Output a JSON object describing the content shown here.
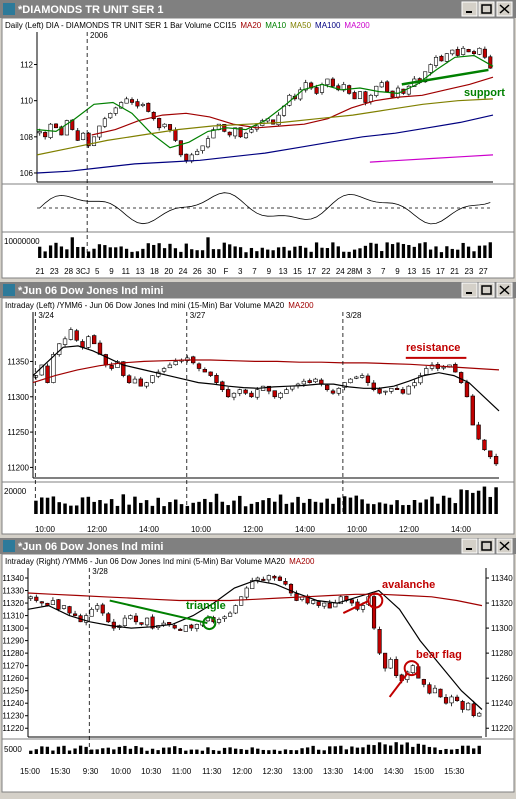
{
  "colors": {
    "titlebar": "#808080",
    "bull": "#ffffff",
    "bear": "#c00000",
    "ma20": "#a00000",
    "ma10": "#008000",
    "ma50": "#808000",
    "ma100": "#000080",
    "ma200": "#cc00cc",
    "annot_green": "#008000",
    "annot_red": "#c00000"
  },
  "windows": [
    {
      "title": "*DIAMONDS TR UNIT SER 1",
      "header": {
        "prefix": "Daily  (Left)   DIA - DIAMONDS TR UNIT SER 1  Bar  Volume  CCI15",
        "ma_labels": [
          {
            "text": "MA20",
            "color": "#a00000"
          },
          {
            "text": "MA10",
            "color": "#008000"
          },
          {
            "text": "MA50",
            "color": "#808000"
          },
          {
            "text": "MA100",
            "color": "#000080"
          },
          {
            "text": "MA200",
            "color": "#cc00cc"
          }
        ]
      }
    },
    {
      "title": "*Jun 06  Dow Jones Ind mini",
      "header": {
        "prefix": "Intraday  (Left)  /YMM6 - Jun 06  Dow Jones Ind mini  (15-Min)  Bar  Volume  MA20",
        "ma_labels": [
          {
            "text": "MA200",
            "color": "#a00000"
          }
        ]
      }
    },
    {
      "title": "*Jun 06  Dow Jones Ind mini",
      "header": {
        "prefix": "Intraday  (Right)  /YMM6 - Jun 06  Dow Jones Ind mini  (5-Min)  Bar  Volume  MA20",
        "ma_labels": [
          {
            "text": "MA200",
            "color": "#a00000"
          }
        ]
      }
    }
  ],
  "chart_data": [
    {
      "type": "candlestick",
      "timeframe": "Daily",
      "symbol": "DIA",
      "ylim": [
        105.5,
        113.8
      ],
      "y_ticks": [
        "112",
        "110",
        "108",
        "106"
      ],
      "year_marker": "2006",
      "x_tick_labels": [
        "21",
        "23",
        "28",
        "3CJ",
        "5",
        "9",
        "11",
        "13",
        "18",
        "20",
        "24",
        "26",
        "30",
        "F",
        "3",
        "7",
        "9",
        "13",
        "15",
        "17",
        "22",
        "24",
        "28M",
        "3",
        "7",
        "9",
        "13",
        "15",
        "17",
        "21",
        "23",
        "27"
      ],
      "closes": [
        108.3,
        108.0,
        108.7,
        108.5,
        108.1,
        108.9,
        108.4,
        107.8,
        108.2,
        107.5,
        108.0,
        108.6,
        109.0,
        109.3,
        109.6,
        109.9,
        110.1,
        109.9,
        109.7,
        109.8,
        109.4,
        109.0,
        108.5,
        108.7,
        108.4,
        107.8,
        107.0,
        106.7,
        107.0,
        107.2,
        107.5,
        107.9,
        108.4,
        108.7,
        108.3,
        108.1,
        108.5,
        108.0,
        108.2,
        108.4,
        108.6,
        108.9,
        109.0,
        108.7,
        109.2,
        109.7,
        110.3,
        110.1,
        110.6,
        111.0,
        110.7,
        110.4,
        110.9,
        111.2,
        110.8,
        110.6,
        110.9,
        110.4,
        110.1,
        110.5,
        109.9,
        110.3,
        110.8,
        111.0,
        110.5,
        110.2,
        110.7,
        110.4,
        110.8,
        111.2,
        111.0,
        111.6,
        112.0,
        112.4,
        112.2,
        112.6,
        112.8,
        112.5,
        112.9,
        112.7,
        112.6,
        112.9,
        112.4,
        111.8
      ],
      "moving_averages": {
        "MA20": [
          108.1,
          108.4,
          108.9,
          109.2,
          109.3,
          109.1,
          108.7,
          108.5,
          108.6,
          108.7,
          109.0,
          109.6,
          110.0,
          110.2,
          110.3,
          110.6,
          110.9,
          111.3
        ],
        "MA10": [
          108.4,
          108.3,
          109.0,
          109.8,
          109.9,
          109.3,
          108.2,
          107.4,
          107.7,
          108.3,
          108.5,
          108.4,
          108.9,
          109.7,
          110.6,
          110.9,
          110.6,
          110.7,
          110.5,
          110.4,
          110.9,
          111.7,
          112.4,
          112.5,
          111.9
        ],
        "MA50": [
          107.0,
          107.4,
          107.8,
          108.1,
          108.4,
          108.6,
          108.7,
          108.8,
          109.0,
          109.2,
          109.5,
          109.8,
          110.0,
          110.1
        ],
        "MA100": [
          106.0,
          106.1,
          106.3,
          106.5,
          106.6,
          106.7,
          106.9,
          107.1,
          107.4,
          107.7,
          108.0,
          108.2,
          108.5,
          108.8,
          109.2
        ],
        "MA200": [
          106.6,
          106.7,
          106.8,
          106.9,
          107.0
        ]
      },
      "cci_zero_line": true,
      "volume_label": "10000000",
      "annotations": [
        {
          "text": "support",
          "color": "#008000"
        }
      ]
    },
    {
      "type": "candlestick",
      "timeframe": "15-Min",
      "symbol": "YMM6",
      "ylim": [
        11185,
        11420
      ],
      "y_ticks": [
        "11350",
        "11300",
        "11250",
        "11200"
      ],
      "date_markers": [
        "3/24",
        "3/27",
        "3/28"
      ],
      "x_tick_labels": [
        "10:00",
        "12:00",
        "14:00",
        "10:00",
        "12:00",
        "14:00",
        "10:00",
        "12:00",
        "14:00"
      ],
      "closes": [
        11330,
        11345,
        11320,
        11360,
        11375,
        11382,
        11395,
        11380,
        11370,
        11385,
        11375,
        11360,
        11345,
        11340,
        11350,
        11330,
        11320,
        11325,
        11315,
        11320,
        11330,
        11335,
        11340,
        11345,
        11350,
        11352,
        11355,
        11348,
        11340,
        11335,
        11330,
        11320,
        11310,
        11300,
        11305,
        11310,
        11305,
        11300,
        11310,
        11315,
        11308,
        11300,
        11305,
        11310,
        11315,
        11318,
        11322,
        11320,
        11325,
        11318,
        11310,
        11305,
        11312,
        11320,
        11325,
        11328,
        11330,
        11320,
        11310,
        11305,
        11308,
        11312,
        11310,
        11305,
        11315,
        11320,
        11330,
        11340,
        11345,
        11340,
        11342,
        11345,
        11335,
        11320,
        11300,
        11260,
        11240,
        11225,
        11215,
        11205
      ],
      "moving_averages": {
        "MA20": [
          11330,
          11350,
          11370,
          11372,
          11365,
          11355,
          11345,
          11340,
          11335,
          11330,
          11325,
          11320,
          11318,
          11315,
          11313,
          11312,
          11314,
          11315,
          11316,
          11318,
          11318,
          11314,
          11312,
          11312,
          11315,
          11322,
          11330,
          11334,
          11330,
          11320,
          11300,
          11280
        ],
        "MA200": [
          11320,
          11330,
          11338,
          11344,
          11348,
          11350,
          11351,
          11352,
          11352,
          11351,
          11350,
          11350,
          11349,
          11349,
          11348,
          11348,
          11347,
          11346,
          11344,
          11342,
          11340,
          11338
        ]
      },
      "volume_label": "20000",
      "annotations": [
        {
          "text": "resistance",
          "color": "#c00000"
        }
      ]
    },
    {
      "type": "candlestick",
      "timeframe": "5-Min",
      "symbol": "YMM6",
      "ylim": [
        11213,
        11348
      ],
      "y_ticks": [
        "11340",
        "11330",
        "11320",
        "11310",
        "11300",
        "11290",
        "11280",
        "11270",
        "11260",
        "11250",
        "11240",
        "11230",
        "11220"
      ],
      "right_ticks": [
        "11340",
        "11320",
        "11300",
        "11280",
        "11260",
        "11240",
        "11220"
      ],
      "date_markers": [
        "3/28"
      ],
      "x_tick_labels": [
        "15:00",
        "15:30",
        "9:30",
        "10:00",
        "10:30",
        "11:00",
        "11:30",
        "12:00",
        "12:30",
        "13:00",
        "13:30",
        "14:00",
        "14:30",
        "15:00",
        "15:30"
      ],
      "closes": [
        11325,
        11322,
        11320,
        11318,
        11322,
        11315,
        11318,
        11312,
        11310,
        11305,
        11310,
        11315,
        11318,
        11312,
        11305,
        11300,
        11302,
        11308,
        11310,
        11305,
        11303,
        11308,
        11300,
        11302,
        11304,
        11303,
        11300,
        11298,
        11302,
        11300,
        11303,
        11305,
        11308,
        11305,
        11307,
        11309,
        11312,
        11318,
        11325,
        11332,
        11338,
        11340,
        11338,
        11342,
        11340,
        11338,
        11335,
        11328,
        11322,
        11325,
        11320,
        11322,
        11318,
        11320,
        11316,
        11320,
        11325,
        11322,
        11320,
        11315,
        11318,
        11325,
        11300,
        11280,
        11268,
        11275,
        11262,
        11258,
        11265,
        11270,
        11260,
        11255,
        11248,
        11252,
        11245,
        11240,
        11245,
        11242,
        11235,
        11240,
        11230,
        11232
      ],
      "moving_averages": {
        "MA20": [
          11315,
          11318,
          11310,
          11305,
          11302,
          11300,
          11301,
          11303,
          11310,
          11320,
          11332,
          11338,
          11335,
          11328,
          11322,
          11320,
          11325,
          11330,
          11315,
          11290,
          11270,
          11250,
          11235
        ],
        "MA200": [
          11328,
          11327,
          11326,
          11325,
          11324,
          11323,
          11322,
          11322,
          11322,
          11323,
          11324,
          11325,
          11326,
          11327,
          11327,
          11326,
          11325,
          11322,
          11318
        ]
      },
      "volume_label": "5000",
      "annotations": [
        {
          "text": "triangle",
          "color": "#008000"
        },
        {
          "text": "avalanche",
          "color": "#c00000"
        },
        {
          "text": "bear flag",
          "color": "#c00000"
        }
      ]
    }
  ]
}
